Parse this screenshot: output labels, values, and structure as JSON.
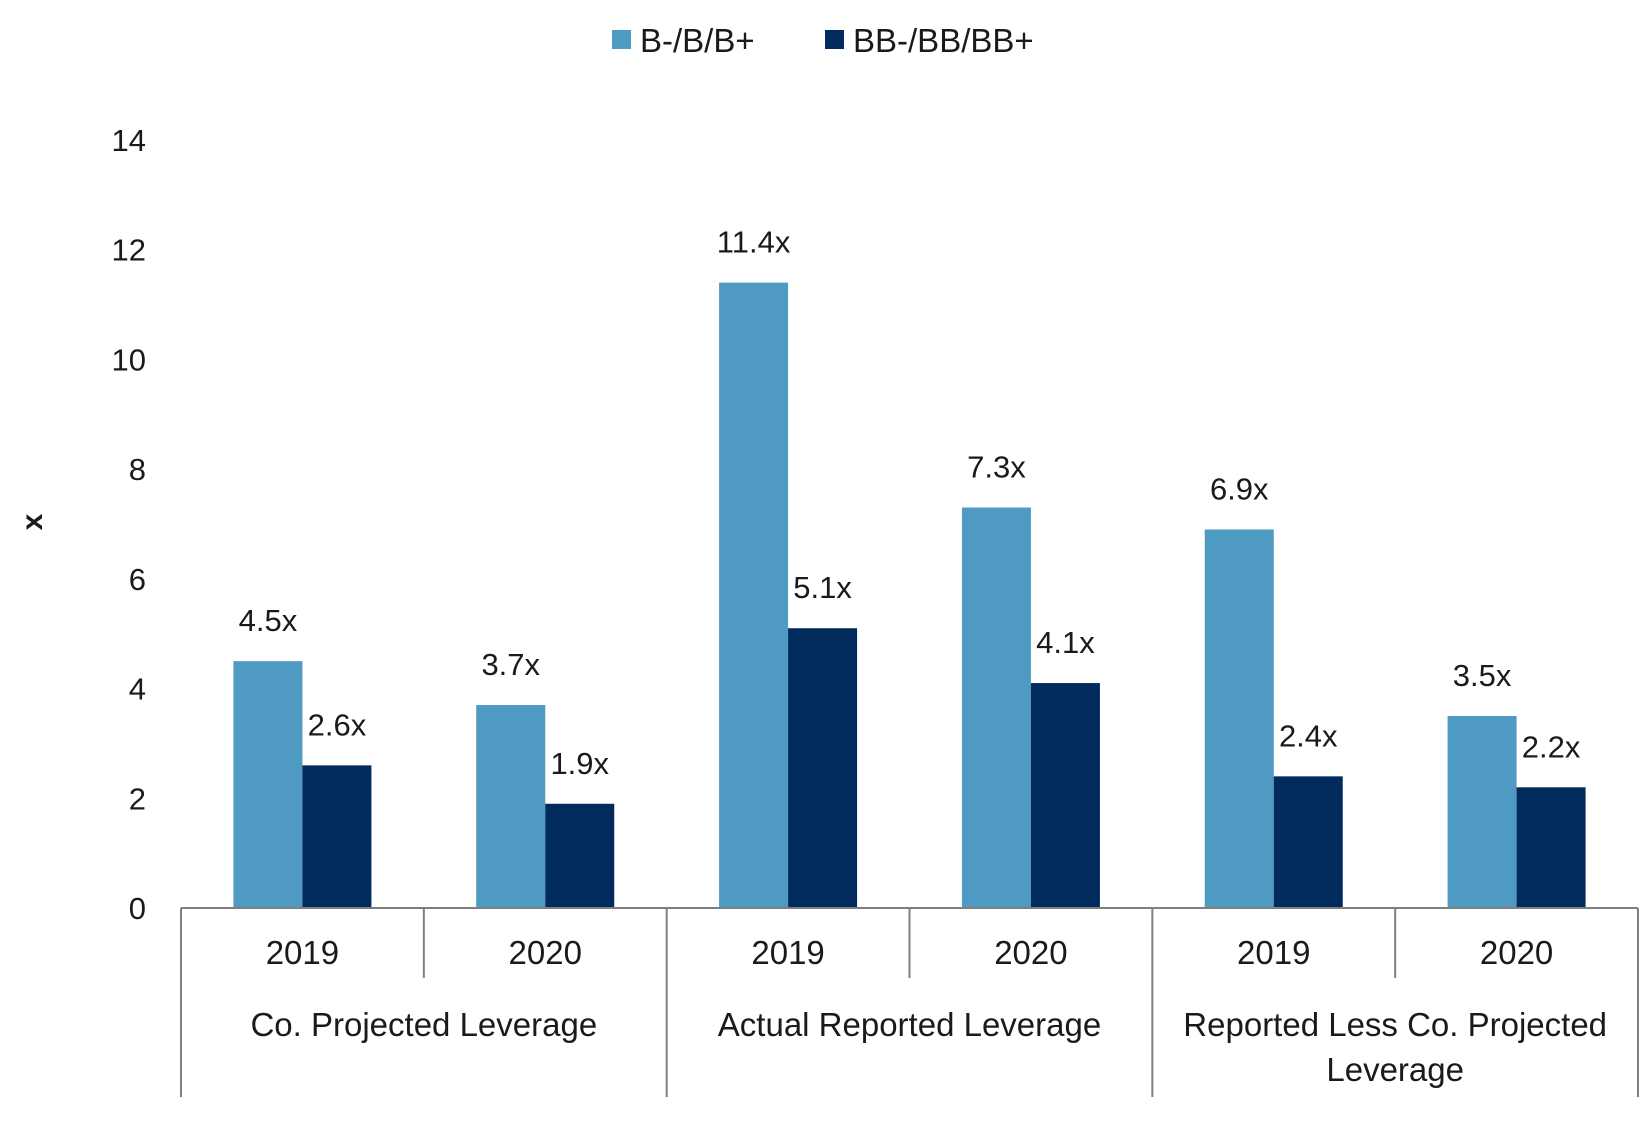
{
  "chart_data": {
    "type": "bar",
    "title": "",
    "xlabel": "",
    "ylabel": "x",
    "ylim": [
      0,
      14
    ],
    "yticks": [
      0,
      2,
      4,
      6,
      8,
      10,
      12,
      14
    ],
    "ytick_labels": [
      "0",
      "2",
      "4",
      "6",
      "8",
      "10",
      "12",
      "14"
    ],
    "grid": false,
    "legend_position": "top-center",
    "categories": [
      "2019",
      "2020",
      "2019",
      "2020",
      "2019",
      "2020"
    ],
    "groups": [
      {
        "label_lines": [
          "Co. Projected Leverage"
        ],
        "span": [
          0,
          1
        ]
      },
      {
        "label_lines": [
          "Actual Reported Leverage"
        ],
        "span": [
          2,
          3
        ]
      },
      {
        "label_lines": [
          "Reported Less Co. Projected",
          "Leverage"
        ],
        "span": [
          4,
          5
        ]
      }
    ],
    "series": [
      {
        "name": "B-/B/B+",
        "color": "#4F9AC2",
        "values": [
          4.5,
          3.7,
          11.4,
          7.3,
          6.9,
          3.5
        ],
        "labels": [
          "4.5x",
          "3.7x",
          "11.4x",
          "7.3x",
          "6.9x",
          "3.5x"
        ]
      },
      {
        "name": "BB-/BB/BB+",
        "color": "#002B5C",
        "values": [
          2.6,
          1.9,
          5.1,
          4.1,
          2.4,
          2.2
        ],
        "labels": [
          "2.6x",
          "1.9x",
          "5.1x",
          "4.1x",
          "2.4x",
          "2.2x"
        ]
      }
    ]
  }
}
